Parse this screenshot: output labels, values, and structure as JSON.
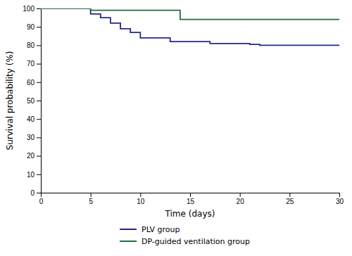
{
  "chart_data": {
    "type": "line",
    "xlabel": "Time (days)",
    "ylabel": "Survival probability (%)",
    "series": [
      {
        "name": "PLV group",
        "color": "#27278a",
        "x": [
          0,
          5,
          5,
          6,
          6,
          7,
          7,
          8,
          8,
          9,
          9,
          10,
          10,
          13,
          13,
          17,
          17,
          21,
          21,
          22,
          22,
          30
        ],
        "values": [
          100,
          100,
          97,
          97,
          95,
          95,
          92,
          92,
          89,
          89,
          87,
          87,
          84,
          84,
          82,
          82,
          81,
          81,
          80.5,
          80.5,
          80,
          80
        ]
      },
      {
        "name": "DP-guided ventilation group",
        "color": "#1e6e3e",
        "x": [
          0,
          5,
          5,
          14,
          14,
          30
        ],
        "values": [
          100,
          100,
          99,
          99,
          94,
          94
        ]
      }
    ],
    "xlim": [
      0,
      30
    ],
    "ylim": [
      0,
      100
    ],
    "xticks": [
      0,
      5,
      10,
      15,
      20,
      25,
      30
    ],
    "yticks": [
      0,
      10,
      20,
      30,
      40,
      50,
      60,
      70,
      80,
      90,
      100
    ],
    "grid": false,
    "legend": "bottom"
  }
}
